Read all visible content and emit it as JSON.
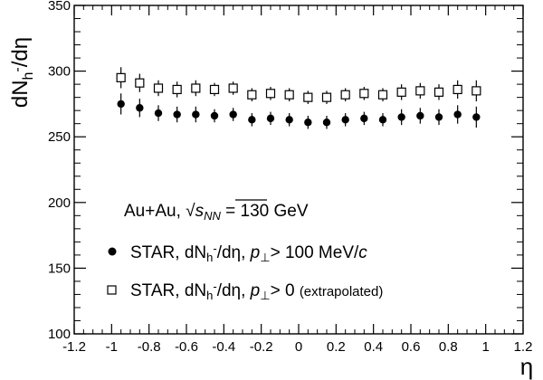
{
  "chart_data": {
    "type": "scatter",
    "xlabel": "η",
    "ylabel": "dN",
    "ylabel_sub": "h",
    "ylabel_sup": "-",
    "ylabel_tail": "/dη",
    "xlim": [
      -1.2,
      1.2
    ],
    "ylim": [
      100,
      350
    ],
    "xticks": [
      "-1.2",
      "-1",
      "-0.8",
      "-0.6",
      "-0.4",
      "-0.2",
      "0",
      "0.2",
      "0.4",
      "0.6",
      "0.8",
      "1",
      "1.2"
    ],
    "xtick_values": [
      -1.2,
      -1.0,
      -0.8,
      -0.6,
      -0.4,
      -0.2,
      0,
      0.2,
      0.4,
      0.6,
      0.8,
      1.0,
      1.2
    ],
    "yticks": [
      "100",
      "150",
      "200",
      "250",
      "300",
      "350"
    ],
    "ytick_values": [
      100,
      150,
      200,
      250,
      300,
      350
    ],
    "grid": false,
    "legend_position": "bottom-left",
    "annotation": {
      "prefix": "Au+Au, ",
      "sqrt": "√",
      "s": "s",
      "s_sub": "NN",
      "suffix": " = 130 GeV"
    },
    "series": [
      {
        "name": "STAR, dNh-/dη, p⊥> 100 MeV/c",
        "label_a": "STAR, dN",
        "label_sub": "h",
        "label_sup": "-",
        "label_b": "/dη, ",
        "label_p": "p",
        "label_perp": "⊥",
        "label_c": "> 100 MeV/",
        "label_c_italic": "c",
        "marker": "filled-circle",
        "x": [
          -0.95,
          -0.85,
          -0.75,
          -0.65,
          -0.55,
          -0.45,
          -0.35,
          -0.25,
          -0.15,
          -0.05,
          0.05,
          0.15,
          0.25,
          0.35,
          0.45,
          0.55,
          0.65,
          0.75,
          0.85,
          0.95
        ],
        "y": [
          275,
          272,
          268,
          267,
          267,
          266,
          267,
          263,
          264,
          263,
          261,
          261,
          263,
          264,
          263,
          265,
          266,
          265,
          267,
          265
        ],
        "err": [
          8,
          7,
          6,
          6,
          6,
          5,
          5,
          5,
          5,
          5,
          5,
          5,
          5,
          5,
          5,
          6,
          6,
          6,
          7,
          8
        ]
      },
      {
        "name": "STAR, dNh-/dη, p⊥> 0 (extrapolated)",
        "label_a": "STAR, dN",
        "label_sub": "h",
        "label_sup": "-",
        "label_b": "/dη, ",
        "label_p": "p",
        "label_perp": "⊥",
        "label_c": "> 0 ",
        "label_small": "(extrapolated)",
        "marker": "open-square",
        "x": [
          -0.95,
          -0.85,
          -0.75,
          -0.65,
          -0.55,
          -0.45,
          -0.35,
          -0.25,
          -0.15,
          -0.05,
          0.05,
          0.15,
          0.25,
          0.35,
          0.45,
          0.55,
          0.65,
          0.75,
          0.85,
          0.95
        ],
        "y": [
          295,
          291,
          287,
          286,
          287,
          286,
          287,
          282,
          283,
          282,
          280,
          280,
          282,
          283,
          282,
          284,
          285,
          284,
          286,
          285
        ],
        "err": [
          8,
          7,
          6,
          6,
          6,
          5,
          5,
          5,
          5,
          5,
          5,
          5,
          5,
          5,
          5,
          6,
          6,
          6,
          7,
          8
        ]
      }
    ]
  }
}
